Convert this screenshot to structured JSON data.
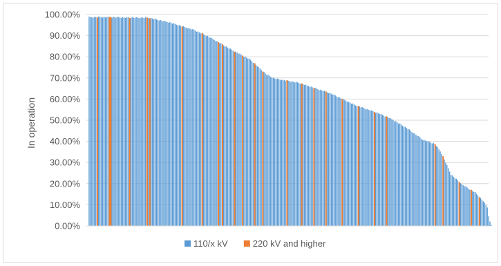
{
  "chart_data": {
    "type": "bar",
    "title": "",
    "xlabel": "",
    "ylabel": "In operation",
    "ylim": [
      0,
      1
    ],
    "y_ticks": [
      "0.00%",
      "10.00%",
      "20.00%",
      "30.00%",
      "40.00%",
      "50.00%",
      "60.00%",
      "70.00%",
      "80.00%",
      "90.00%",
      "100.00%"
    ],
    "grid": "horizontal",
    "legend_position": "bottom",
    "series": [
      {
        "name": "110/x kV",
        "color": "#5b9bd5"
      },
      {
        "name": "220 kV and higher",
        "color": "#ed7d31"
      }
    ],
    "profile": [
      [
        0,
        0.99
      ],
      [
        0.06,
        0.99
      ],
      [
        0.09,
        0.988
      ],
      [
        0.15,
        0.987
      ],
      [
        0.165,
        0.98
      ],
      [
        0.2,
        0.965
      ],
      [
        0.26,
        0.93
      ],
      [
        0.3,
        0.895
      ],
      [
        0.35,
        0.84
      ],
      [
        0.4,
        0.79
      ],
      [
        0.44,
        0.72
      ],
      [
        0.46,
        0.7
      ],
      [
        0.52,
        0.68
      ],
      [
        0.6,
        0.63
      ],
      [
        0.66,
        0.575
      ],
      [
        0.72,
        0.535
      ],
      [
        0.75,
        0.51
      ],
      [
        0.79,
        0.465
      ],
      [
        0.83,
        0.41
      ],
      [
        0.86,
        0.39
      ],
      [
        0.875,
        0.35
      ],
      [
        0.9,
        0.245
      ],
      [
        0.93,
        0.195
      ],
      [
        0.96,
        0.16
      ],
      [
        0.98,
        0.12
      ],
      [
        0.99,
        0.09
      ],
      [
        0.995,
        0.03
      ],
      [
        1.0,
        0.005
      ]
    ],
    "bar_count": 300,
    "highlight_series2_at": [
      0.02,
      0.05,
      0.053,
      0.1,
      0.145,
      0.15,
      0.23,
      0.28,
      0.32,
      0.33,
      0.36,
      0.38,
      0.41,
      0.43,
      0.49,
      0.53,
      0.56,
      0.59,
      0.63,
      0.67,
      0.71,
      0.74,
      0.86,
      0.88,
      0.92,
      0.95,
      0.97
    ]
  }
}
